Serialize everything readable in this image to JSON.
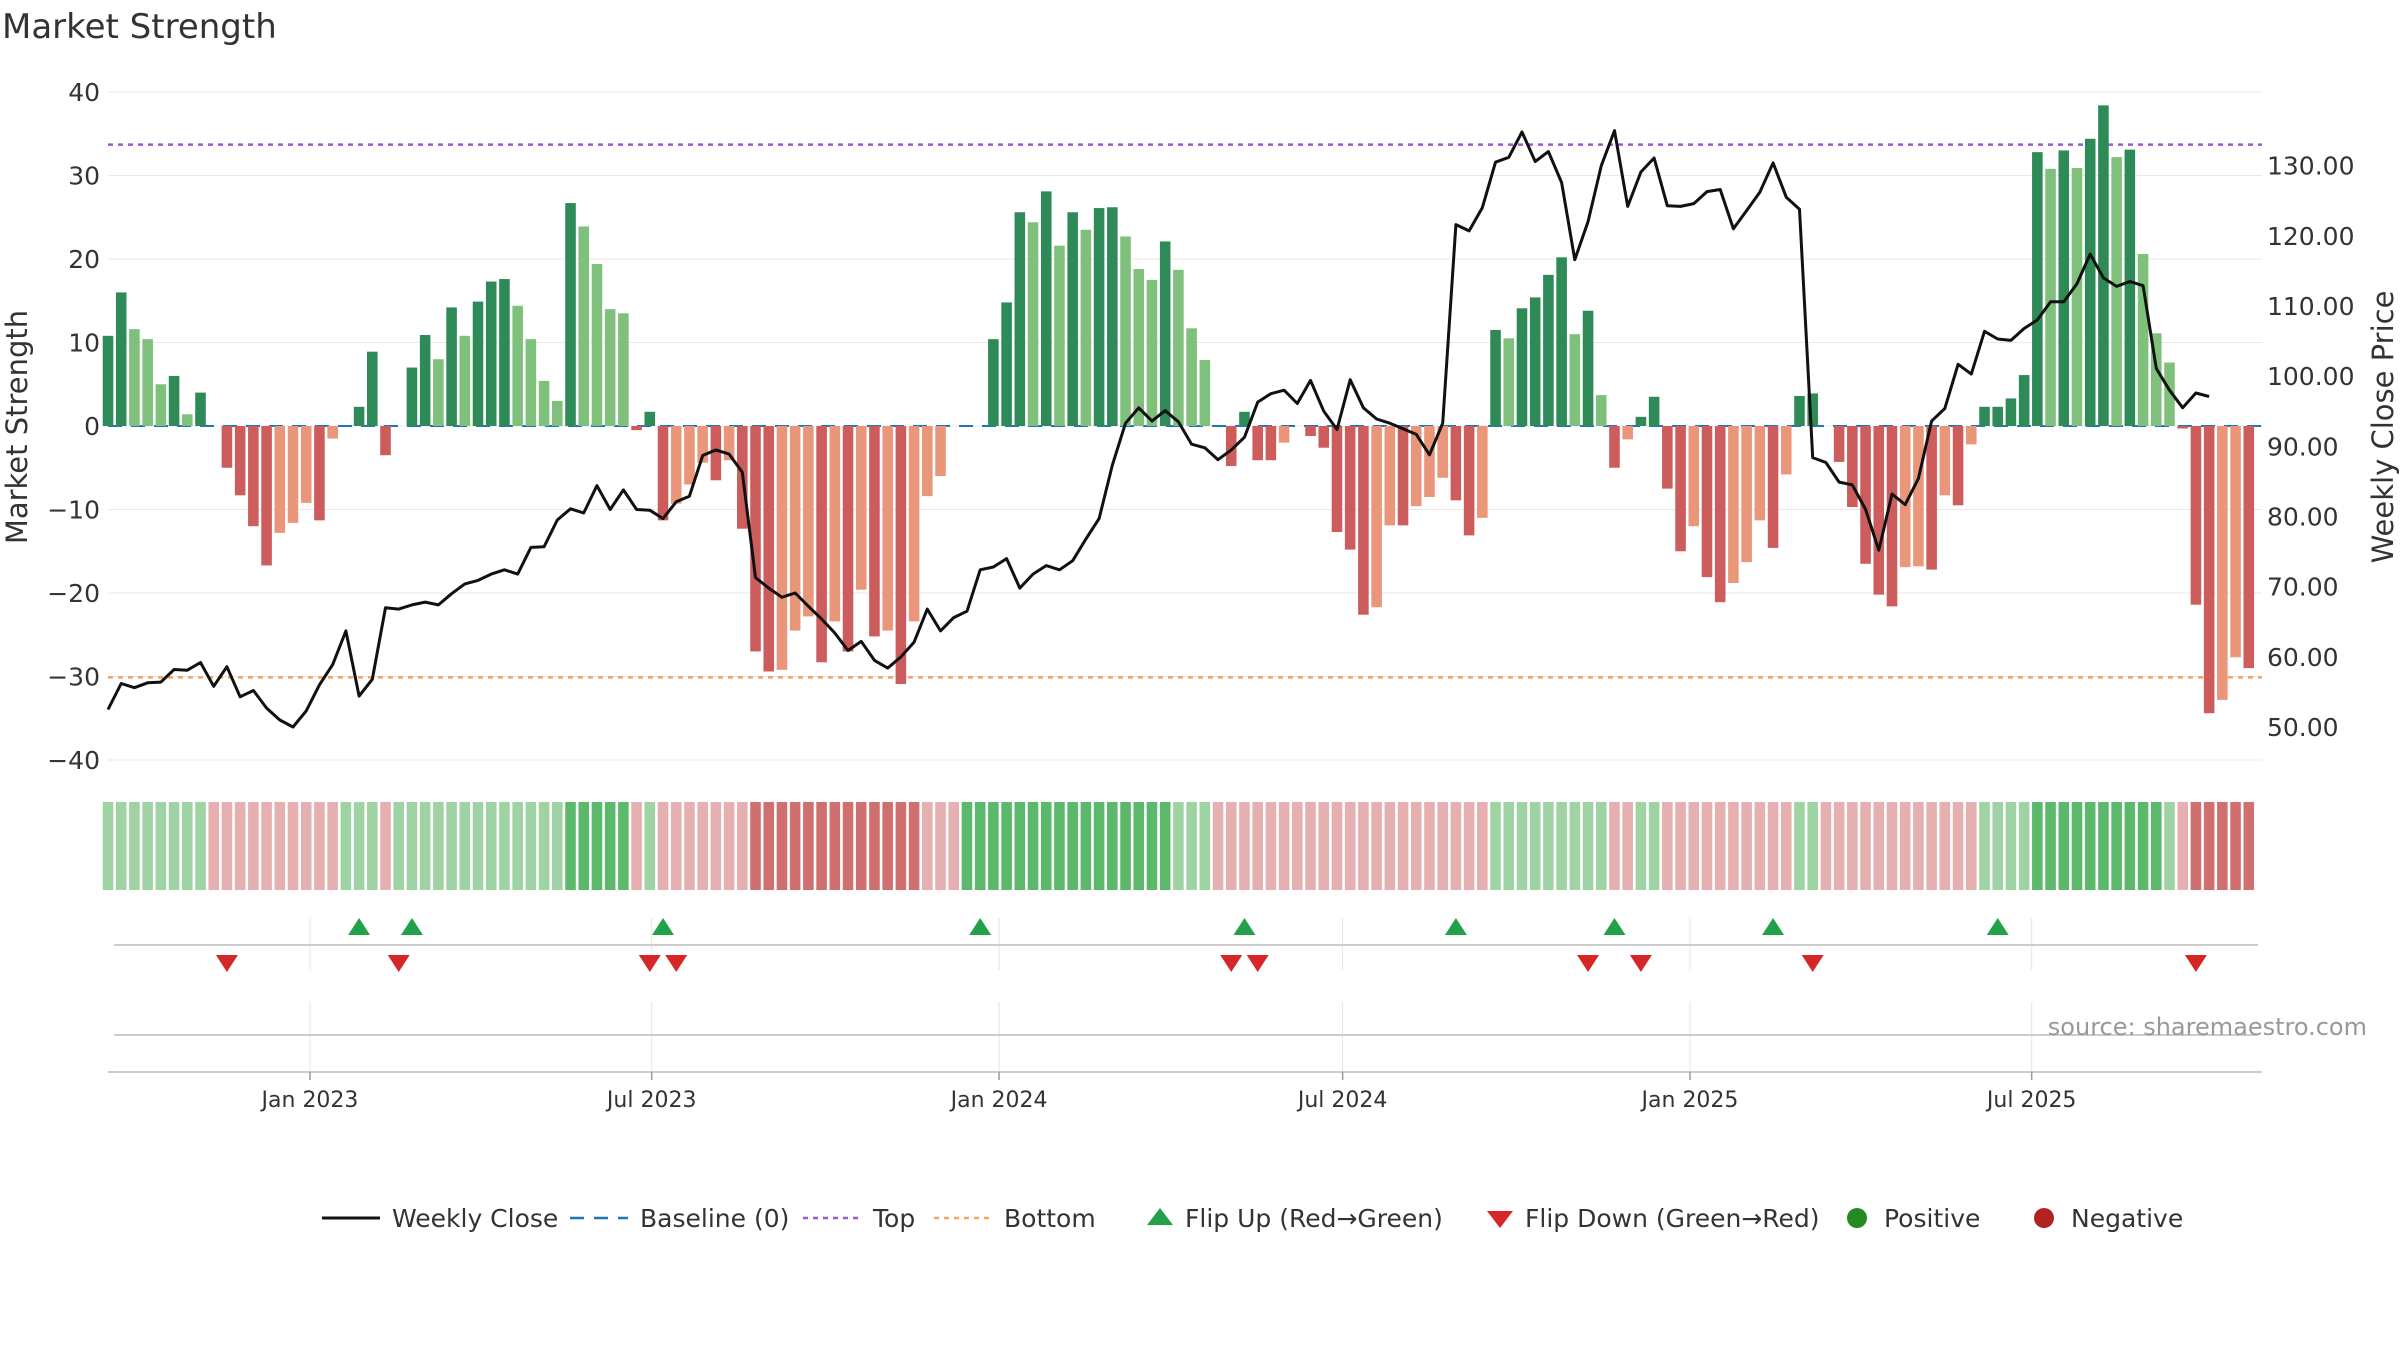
{
  "title": "Market Strength",
  "source": "source: sharemaestro.com",
  "colors": {
    "pos_strong": "#2e8b57",
    "pos_light": "#80c07d",
    "neg_strong": "#cd5c5c",
    "neg_light": "#e9967a",
    "close_line": "#111111",
    "baseline": "#1f77b4",
    "top": "#9b59d0",
    "bottom": "#f4a460",
    "flip_up": "#23a04a",
    "flip_down": "#d62728",
    "positive": "#228b22",
    "negative": "#b22222"
  },
  "legend": [
    {
      "key": "close",
      "label": "Weekly Close"
    },
    {
      "key": "baseline",
      "label": "Baseline (0)"
    },
    {
      "key": "top",
      "label": "Top"
    },
    {
      "key": "bottom",
      "label": "Bottom"
    },
    {
      "key": "flipup",
      "label": "Flip Up (Red→Green)"
    },
    {
      "key": "flipdown",
      "label": "Flip Down (Green→Red)"
    },
    {
      "key": "positive",
      "label": "Positive"
    },
    {
      "key": "negative",
      "label": "Negative"
    }
  ],
  "chart_data": {
    "type": "bar",
    "title": "Market Strength",
    "ylabel": "Market Strength",
    "y2label": "Weekly Close Price",
    "ylim": [
      -40,
      40
    ],
    "y2lim": [
      45.3,
      140.5
    ],
    "yticks": [
      40,
      30,
      20,
      10,
      0,
      -10,
      -20,
      -30,
      -40
    ],
    "yticklabels": [
      "40",
      "30",
      "20",
      "10",
      "0",
      "−10",
      "−20",
      "−30",
      "−40"
    ],
    "y2ticks": [
      130,
      120,
      110,
      100,
      90,
      80,
      70,
      60,
      50
    ],
    "y2ticklabels": [
      "130.00",
      "120.00",
      "110.00",
      "100.00",
      "90.00",
      "80.00",
      "70.00",
      "60.00",
      "50.00"
    ],
    "x_start": "2022-09-16",
    "x_end": "2025-10-31",
    "xticks": [
      "2023-01-01",
      "2023-07-01",
      "2024-01-01",
      "2024-07-01",
      "2025-01-01",
      "2025-07-01"
    ],
    "xticklabels": [
      "Jan 2023",
      "Jul 2023",
      "Jan 2024",
      "Jul 2024",
      "Jan 2025",
      "Jul 2025"
    ],
    "grid": true,
    "legend_position": "bottom",
    "top_level": 33.7,
    "bottom_level": -30.1,
    "baseline": 0,
    "dates": [
      "2022-09-16",
      "2022-09-23",
      "2022-09-30",
      "2022-10-07",
      "2022-10-14",
      "2022-10-21",
      "2022-10-28",
      "2022-11-04",
      "2022-11-11",
      "2022-11-18",
      "2022-11-25",
      "2022-12-02",
      "2022-12-09",
      "2022-12-16",
      "2022-12-23",
      "2022-12-30",
      "2023-01-06",
      "2023-01-13",
      "2023-01-20",
      "2023-01-27",
      "2023-02-03",
      "2023-02-10",
      "2023-02-17",
      "2023-02-24",
      "2023-03-03",
      "2023-03-10",
      "2023-03-17",
      "2023-03-24",
      "2023-03-31",
      "2023-04-07",
      "2023-04-14",
      "2023-04-21",
      "2023-04-28",
      "2023-05-05",
      "2023-05-12",
      "2023-05-19",
      "2023-05-26",
      "2023-06-02",
      "2023-06-09",
      "2023-06-16",
      "2023-06-23",
      "2023-06-30",
      "2023-07-07",
      "2023-07-14",
      "2023-07-21",
      "2023-07-28",
      "2023-08-04",
      "2023-08-11",
      "2023-08-18",
      "2023-08-25",
      "2023-09-01",
      "2023-09-08",
      "2023-09-15",
      "2023-09-22",
      "2023-09-29",
      "2023-10-06",
      "2023-10-13",
      "2023-10-20",
      "2023-10-27",
      "2023-11-03",
      "2023-11-10",
      "2023-11-17",
      "2023-11-24",
      "2023-12-01",
      "2023-12-08",
      "2023-12-15",
      "2023-12-22",
      "2023-12-29",
      "2024-01-05",
      "2024-01-12",
      "2024-01-19",
      "2024-01-26",
      "2024-02-02",
      "2024-02-09",
      "2024-02-16",
      "2024-02-23",
      "2024-03-01",
      "2024-03-08",
      "2024-03-15",
      "2024-03-22",
      "2024-03-29",
      "2024-04-05",
      "2024-04-12",
      "2024-04-19",
      "2024-04-26",
      "2024-05-03",
      "2024-05-10",
      "2024-05-17",
      "2024-05-24",
      "2024-05-31",
      "2024-06-07",
      "2024-06-14",
      "2024-06-21",
      "2024-06-28",
      "2024-07-05",
      "2024-07-12",
      "2024-07-19",
      "2024-07-26",
      "2024-08-02",
      "2024-08-09",
      "2024-08-16",
      "2024-08-23",
      "2024-08-30",
      "2024-09-06",
      "2024-09-13",
      "2024-09-20",
      "2024-09-27",
      "2024-10-04",
      "2024-10-11",
      "2024-10-18",
      "2024-10-25",
      "2024-11-01",
      "2024-11-08",
      "2024-11-15",
      "2024-11-22",
      "2024-11-29",
      "2024-12-06",
      "2024-12-13",
      "2024-12-20",
      "2024-12-27",
      "2025-01-03",
      "2025-01-10",
      "2025-01-17",
      "2025-01-24",
      "2025-01-31",
      "2025-02-07",
      "2025-02-14",
      "2025-02-21",
      "2025-02-28",
      "2025-03-07",
      "2025-03-14",
      "2025-03-21",
      "2025-03-28",
      "2025-04-04",
      "2025-04-11",
      "2025-04-18",
      "2025-04-25",
      "2025-05-02",
      "2025-05-09",
      "2025-05-16",
      "2025-05-23",
      "2025-05-30",
      "2025-06-06",
      "2025-06-13",
      "2025-06-20",
      "2025-06-27",
      "2025-07-04",
      "2025-07-11",
      "2025-07-18",
      "2025-07-25",
      "2025-08-01",
      "2025-08-08",
      "2025-08-15",
      "2025-08-22",
      "2025-08-29",
      "2025-09-05",
      "2025-09-12",
      "2025-09-19",
      "2025-09-26",
      "2025-10-03",
      "2025-10-10",
      "2025-10-17",
      "2025-10-24"
    ],
    "strength": [
      10.8,
      16,
      11.6,
      10.4,
      5,
      6,
      1.4,
      4,
      0,
      -5,
      -8.3,
      -12,
      -16.7,
      -12.8,
      -11.6,
      -9.2,
      -11.3,
      -1.5,
      0,
      2.3,
      8.9,
      -3.5,
      0,
      7,
      10.9,
      8,
      14.2,
      10.8,
      14.9,
      17.3,
      17.6,
      14.4,
      10.4,
      5.4,
      3,
      26.7,
      23.9,
      19.4,
      14,
      13.5,
      -0.5,
      1.7,
      -11.3,
      -9.3,
      -7,
      -4.4,
      -6.5,
      -4.1,
      -12.3,
      -27,
      -29.4,
      -29.2,
      -24.5,
      -22.8,
      -28.3,
      -23.4,
      -27,
      -19.6,
      -25.2,
      -24.5,
      -30.9,
      -23.4,
      -8.4,
      -6,
      0,
      0,
      0,
      10.4,
      14.8,
      25.6,
      24.4,
      28.1,
      21.6,
      25.6,
      23.5,
      26.1,
      26.2,
      22.7,
      18.8,
      17.5,
      22.1,
      18.7,
      11.7,
      7.9,
      0,
      -4.8,
      1.7,
      -4.1,
      -4.1,
      -2,
      0,
      -1.2,
      -2.6,
      -12.7,
      -14.8,
      -22.6,
      -21.7,
      -11.9,
      -11.9,
      -9.6,
      -8.5,
      -6.2,
      -8.9,
      -13.1,
      -11,
      11.5,
      10.5,
      14.1,
      15.4,
      18.1,
      20.2,
      11,
      13.8,
      3.7,
      -5,
      -1.6,
      1.1,
      3.5,
      -7.5,
      -15,
      -12,
      -18.1,
      -21.1,
      -18.8,
      -16.3,
      -11.3,
      -14.6,
      -5.8,
      3.6,
      3.9,
      0,
      -4.3,
      -9.7,
      -16.5,
      -20.2,
      -21.6,
      -16.9,
      -16.8,
      -17.2,
      -8.3,
      -9.5,
      -2.2,
      2.3,
      2.3,
      3.3,
      6.1,
      32.8,
      30.8,
      33,
      30.9,
      34.4,
      38.4,
      32.2,
      33.1,
      20.6,
      11.1,
      7.6,
      -0.3,
      -21.4,
      -34.4,
      -32.8,
      -27.7,
      -29
    ],
    "weekly_close": [
      52.5,
      56.2,
      55.6,
      56.3,
      56.4,
      58.2,
      58.1,
      59.2,
      55.8,
      58.6,
      54.3,
      55.2,
      52.7,
      51,
      50,
      52.3,
      56,
      58.9,
      63.7,
      54.4,
      56.8,
      67,
      66.8,
      67.4,
      67.8,
      67.4,
      69,
      70.4,
      70.9,
      71.8,
      72.4,
      71.8,
      75.6,
      75.7,
      79.5,
      81.1,
      80.5,
      84.4,
      81,
      83.8,
      81,
      80.9,
      79.7,
      82.1,
      82.9,
      88.7,
      89.5,
      88.9,
      86.3,
      71.3,
      69.8,
      68.5,
      69.1,
      67.2,
      65.4,
      63.4,
      60.9,
      62.2,
      59.5,
      58.4,
      60,
      62.1,
      66.8,
      63.7,
      65.6,
      66.5,
      72.4,
      72.8,
      74,
      69.8,
      71.8,
      73,
      72.4,
      73.7,
      76.8,
      79.7,
      87.3,
      93.3,
      95.5,
      93.6,
      95.1,
      93.5,
      90.3,
      89.8,
      88.1,
      89.5,
      91.3,
      96.3,
      97.5,
      98,
      96.1,
      99.4,
      95,
      92.4,
      99.5,
      95.5,
      93.9,
      93.3,
      92.5,
      91.7,
      88.8,
      93.3,
      121.6,
      120.7,
      124,
      130.5,
      131.2,
      134.8,
      130.6,
      132,
      127.6,
      116.6,
      122,
      130,
      135,
      124.2,
      129.1,
      131.1,
      124.3,
      124.2,
      124.6,
      126.3,
      126.6,
      121,
      123.6,
      126.2,
      130.4,
      125.5,
      123.8,
      88.4,
      87.7,
      84.9,
      84.5,
      81,
      75.2,
      83.2,
      81.7,
      85.4,
      93.6,
      95.4,
      101.7,
      100.3,
      106.4,
      105.3,
      105.1,
      106.8,
      108,
      110.6,
      110.6,
      113.2,
      117.4,
      114,
      112.8,
      113.5,
      112.9,
      101.1,
      98,
      95.5,
      97.6,
      97.1
    ],
    "band": [
      1,
      1,
      1,
      1,
      1,
      1,
      1,
      1,
      -1,
      -1,
      -1,
      -1,
      -1,
      -1,
      -1,
      -1,
      -1,
      -1,
      1,
      1,
      1,
      -1,
      1,
      1,
      1,
      1,
      1,
      1,
      1,
      1,
      1,
      1,
      1,
      1,
      1,
      2,
      2,
      2,
      2,
      2,
      -1,
      1,
      -1,
      -1,
      -1,
      -1,
      -1,
      -1,
      -1,
      -2,
      -2,
      -2,
      -2,
      -2,
      -2,
      -2,
      -2,
      -2,
      -2,
      -2,
      -2,
      -2,
      -1,
      -1,
      -1,
      2,
      2,
      2,
      2,
      2,
      2,
      2,
      2,
      2,
      2,
      2,
      2,
      2,
      2,
      2,
      2,
      1,
      1,
      1,
      -1,
      -1,
      -1,
      -1,
      -1,
      -1,
      -1,
      -1,
      -1,
      -1,
      -1,
      -1,
      -1,
      -1,
      -1,
      -1,
      -1,
      -1,
      -1,
      -1,
      -1,
      1,
      1,
      1,
      1,
      1,
      1,
      1,
      1,
      1,
      -1,
      -1,
      1,
      1,
      -1,
      -1,
      -1,
      -1,
      -1,
      -1,
      -1,
      -1,
      -1,
      -1,
      1,
      1,
      -1,
      -1,
      -1,
      -1,
      -1,
      -1,
      -1,
      -1,
      -1,
      -1,
      -1,
      -1,
      1,
      1,
      1,
      1,
      2,
      2,
      2,
      2,
      2,
      2,
      2,
      2,
      2,
      2,
      1,
      -1,
      -2,
      -2,
      -2,
      -2,
      -2
    ],
    "flip_up": [
      "2023-01-27",
      "2023-02-24",
      "2023-07-07",
      "2023-12-22",
      "2024-05-10",
      "2024-08-30",
      "2024-11-22",
      "2025-02-14",
      "2025-06-13"
    ],
    "flip_down": [
      "2022-11-18",
      "2023-02-17",
      "2023-06-30",
      "2023-07-14",
      "2024-05-03",
      "2024-05-17",
      "2024-11-08",
      "2024-12-06",
      "2025-03-07",
      "2025-09-26"
    ]
  }
}
